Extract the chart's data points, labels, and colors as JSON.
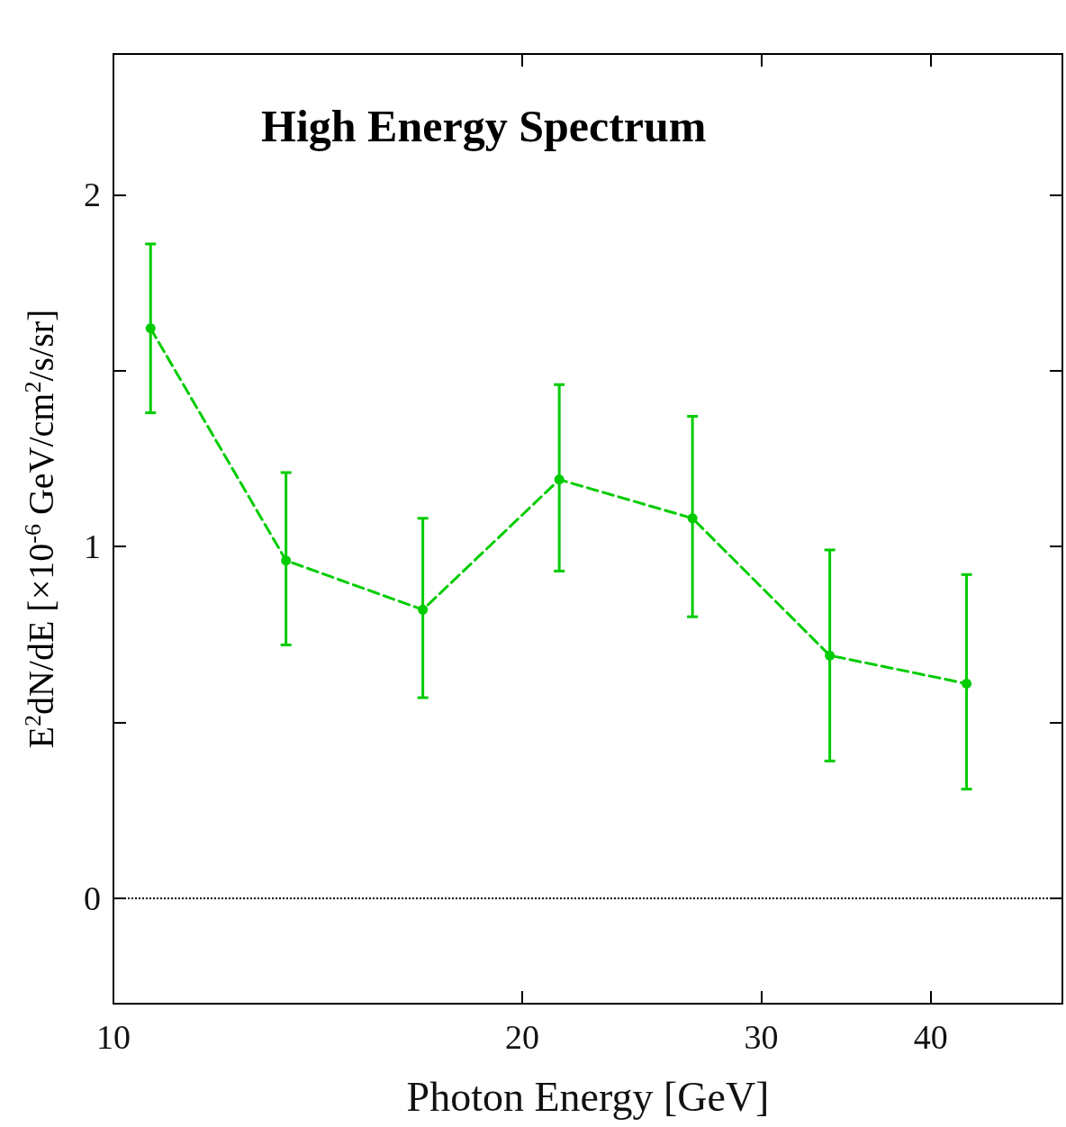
{
  "chart_data": {
    "type": "line",
    "title": "High Energy Spectrum",
    "xlabel": "Photon Energy [GeV]",
    "ylabel": "E$^{2}$dN/dE [×10$^{-6}$ GeV/cm$^{2}$/s/sr]",
    "x": [
      10.65,
      13.4,
      16.9,
      21.3,
      26.7,
      33.7,
      42.5
    ],
    "series": [
      {
        "color": "#00cc00",
        "values": [
          1.62,
          0.96,
          0.82,
          1.19,
          1.08,
          0.69,
          0.61
        ],
        "errors": [
          [
            1.38,
            1.86
          ],
          [
            0.72,
            1.21
          ],
          [
            0.57,
            1.08
          ],
          [
            0.93,
            1.46
          ],
          [
            0.8,
            1.37
          ],
          [
            0.39,
            0.99
          ],
          [
            0.31,
            0.92
          ]
        ]
      }
    ],
    "log": "x",
    "xlim": [
      10,
      50
    ],
    "xticks": [
      10,
      20,
      30,
      40
    ],
    "ylim": [
      -0.3,
      2.4
    ],
    "yticks": [
      0,
      {
        "value": 0.5,
        "label": null
      },
      1,
      {
        "value": 1.5,
        "label": null
      },
      2
    ],
    "ref_lines": [
      {
        "axis": "y",
        "value": 0,
        "color": "#000000",
        "line_style": "dotted"
      }
    ],
    "marker": "circle",
    "line_style": "dashed"
  }
}
